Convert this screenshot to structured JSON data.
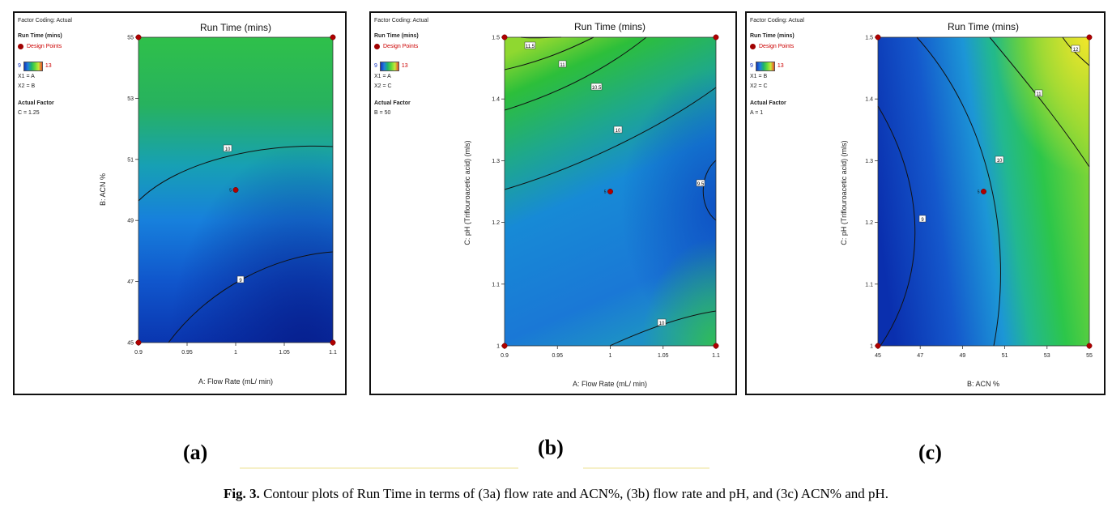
{
  "panels": [
    {
      "id": "a",
      "factor_coding": "Factor Coding: Actual",
      "response": "Run Time (mins)",
      "design_points": "Design Points",
      "legend_min": "9",
      "legend_max": "13",
      "x1": "X1 = A",
      "x2": "X2 = B",
      "actual_factor_title": "Actual Factor",
      "actual_factor": "C = 1.25",
      "title": "Run Time (mins)",
      "xlabel": "A: Flow Rate (mL/ min)",
      "ylabel": "B: ACN %",
      "caption": "(a)"
    },
    {
      "id": "b",
      "factor_coding": "Factor Coding: Actual",
      "response": "Run Time (mins)",
      "design_points": "Design Points",
      "legend_min": "9",
      "legend_max": "13",
      "x1": "X1 = A",
      "x2": "X2 = C",
      "actual_factor_title": "Actual Factor",
      "actual_factor": "B = 50",
      "title": "Run Time (mins)",
      "xlabel": "A: Flow Rate (mL/ min)",
      "ylabel": "C: pH (Triflouroacetic acid) (mls)",
      "caption": "(b)"
    },
    {
      "id": "c",
      "factor_coding": "Factor Coding: Actual",
      "response": "Run Time (mins)",
      "design_points": "Design Points",
      "legend_min": "9",
      "legend_max": "13",
      "x1": "X1 = B",
      "x2": "X2 = C",
      "actual_factor_title": "Actual Factor",
      "actual_factor": "A = 1",
      "title": "Run Time (mins)",
      "xlabel": "B: ACN %",
      "ylabel": "C: pH (Triflouroacetic acid) (mls)",
      "caption": "(c)"
    }
  ],
  "figure_caption": {
    "label": "Fig. 3.",
    "text": "Contour plots of Run Time in terms of (3a) flow rate and ACN%, (3b) flow rate and pH, and (3c) ACN% and pH."
  },
  "chart_data": [
    {
      "type": "contour",
      "title": "Run Time (mins)",
      "xlabel": "A: Flow Rate (mL/ min)",
      "ylabel": "B: ACN %",
      "xlim": [
        0.9,
        1.1
      ],
      "ylim": [
        45,
        55
      ],
      "x_ticks": [
        "0.9",
        "0.95",
        "1",
        "1.05",
        "1.1"
      ],
      "y_ticks": [
        "45",
        "47",
        "49",
        "51",
        "53",
        "55"
      ],
      "contour_labels": [
        "10",
        "9"
      ],
      "design_points": [
        [
          0.9,
          45
        ],
        [
          0.9,
          55
        ],
        [
          1.1,
          45
        ],
        [
          1.1,
          55
        ],
        [
          1.0,
          50
        ]
      ],
      "center_point_count": "5",
      "color_range": [
        9,
        13
      ]
    },
    {
      "type": "contour",
      "title": "Run Time (mins)",
      "xlabel": "A: Flow Rate (mL/ min)",
      "ylabel": "C: pH (Triflouroacetic acid) (mls)",
      "xlim": [
        0.9,
        1.1
      ],
      "ylim": [
        1,
        1.5
      ],
      "x_ticks": [
        "0.9",
        "0.95",
        "1",
        "1.05",
        "1.1"
      ],
      "y_ticks": [
        "1",
        "1.1",
        "1.2",
        "1.3",
        "1.4",
        "1.5"
      ],
      "contour_labels": [
        "11.5",
        "11",
        "10.5",
        "10",
        "9.5",
        "10"
      ],
      "design_points": [
        [
          0.9,
          1
        ],
        [
          0.9,
          1.5
        ],
        [
          1.1,
          1
        ],
        [
          1.1,
          1.5
        ],
        [
          1.0,
          1.25
        ]
      ],
      "center_point_count": "5",
      "color_range": [
        9,
        13
      ]
    },
    {
      "type": "contour",
      "title": "Run Time (mins)",
      "xlabel": "B: ACN %",
      "ylabel": "C: pH (Triflouroacetic acid) (mls)",
      "xlim": [
        45,
        55
      ],
      "ylim": [
        1,
        1.5
      ],
      "x_ticks": [
        "45",
        "47",
        "49",
        "51",
        "53",
        "55"
      ],
      "y_ticks": [
        "1",
        "1.1",
        "1.2",
        "1.3",
        "1.4",
        "1.5"
      ],
      "contour_labels": [
        "9",
        "10",
        "11",
        "12"
      ],
      "design_points": [
        [
          45,
          1
        ],
        [
          45,
          1.5
        ],
        [
          55,
          1
        ],
        [
          55,
          1.5
        ],
        [
          50,
          1.25
        ]
      ],
      "center_point_count": "5",
      "color_range": [
        9,
        13
      ]
    }
  ]
}
